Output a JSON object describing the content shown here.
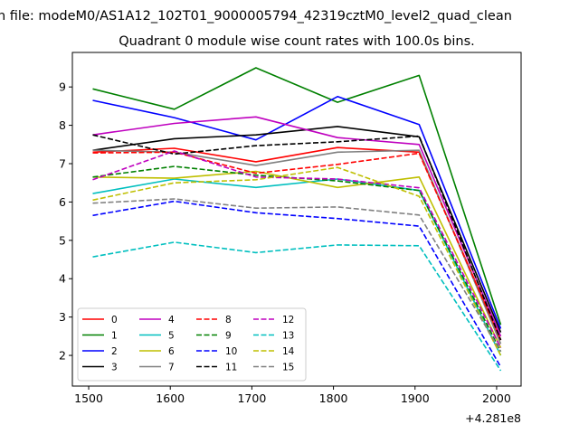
{
  "chart_data": {
    "type": "line",
    "suptitle": "n file: modeM0/AS1A12_102T01_9000005794_42319cztM0_level2_quad_clean",
    "title": "Quadrant 0 module wise count rates with 100.0s bins.",
    "xlabel": "",
    "ylabel": "",
    "x_offset_label": "+4.281e8",
    "x": [
      1505,
      1605,
      1705,
      1805,
      1905,
      2005
    ],
    "xlim": [
      1480,
      2030
    ],
    "ylim": [
      1.2,
      9.9
    ],
    "xticks": [
      1500,
      1600,
      1700,
      1800,
      1900,
      2000
    ],
    "xtick_labels": [
      "1500",
      "1600",
      "1700",
      "1800",
      "1900",
      "2000"
    ],
    "yticks": [
      2,
      3,
      4,
      5,
      6,
      7,
      8,
      9
    ],
    "ytick_labels": [
      "2",
      "3",
      "4",
      "5",
      "6",
      "7",
      "8",
      "9"
    ],
    "grid": false,
    "legend": {
      "placement": "lower-left",
      "columns": 4
    },
    "series": [
      {
        "name": "0",
        "color": "#ff0000",
        "dash": "solid",
        "values": [
          7.3,
          7.4,
          7.05,
          7.42,
          7.3,
          2.4
        ]
      },
      {
        "name": "1",
        "color": "#008000",
        "dash": "solid",
        "values": [
          8.95,
          8.42,
          9.5,
          8.6,
          9.3,
          2.8
        ]
      },
      {
        "name": "2",
        "color": "#0000ff",
        "dash": "solid",
        "values": [
          8.65,
          8.2,
          7.62,
          8.75,
          8.02,
          2.7
        ]
      },
      {
        "name": "3",
        "color": "#000000",
        "dash": "solid",
        "values": [
          7.35,
          7.65,
          7.75,
          7.97,
          7.7,
          2.6
        ]
      },
      {
        "name": "4",
        "color": "#bf00bf",
        "dash": "solid",
        "values": [
          7.75,
          8.05,
          8.22,
          7.68,
          7.5,
          2.5
        ]
      },
      {
        "name": "5",
        "color": "#00bfbf",
        "dash": "solid",
        "values": [
          6.22,
          6.6,
          6.38,
          6.6,
          6.3,
          2.0
        ]
      },
      {
        "name": "6",
        "color": "#bfbf00",
        "dash": "solid",
        "values": [
          6.65,
          6.62,
          6.8,
          6.38,
          6.65,
          2.2
        ]
      },
      {
        "name": "7",
        "color": "#808080",
        "dash": "solid",
        "values": [
          7.35,
          7.3,
          6.95,
          7.3,
          7.35,
          2.3
        ]
      },
      {
        "name": "8",
        "color": "#ff0000",
        "dash": "dashed",
        "values": [
          7.28,
          7.3,
          6.75,
          6.98,
          7.27,
          2.4
        ]
      },
      {
        "name": "9",
        "color": "#008000",
        "dash": "dashed",
        "values": [
          6.65,
          6.93,
          6.7,
          6.55,
          6.3,
          2.1
        ]
      },
      {
        "name": "10",
        "color": "#0000ff",
        "dash": "dashed",
        "values": [
          5.65,
          6.02,
          5.72,
          5.57,
          5.37,
          1.7
        ]
      },
      {
        "name": "11",
        "color": "#000000",
        "dash": "dashed",
        "values": [
          7.75,
          7.25,
          7.47,
          7.57,
          7.72,
          2.4
        ]
      },
      {
        "name": "12",
        "color": "#bf00bf",
        "dash": "dashed",
        "values": [
          6.58,
          7.33,
          6.65,
          6.6,
          6.37,
          2.2
        ]
      },
      {
        "name": "13",
        "color": "#00bfbf",
        "dash": "dashed",
        "values": [
          4.57,
          4.95,
          4.68,
          4.88,
          4.86,
          1.6
        ]
      },
      {
        "name": "14",
        "color": "#bfbf00",
        "dash": "dashed",
        "values": [
          6.05,
          6.5,
          6.58,
          6.9,
          6.15,
          2.0
        ]
      },
      {
        "name": "15",
        "color": "#808080",
        "dash": "dashed",
        "values": [
          5.97,
          6.08,
          5.84,
          5.87,
          5.66,
          2.1
        ]
      }
    ]
  }
}
